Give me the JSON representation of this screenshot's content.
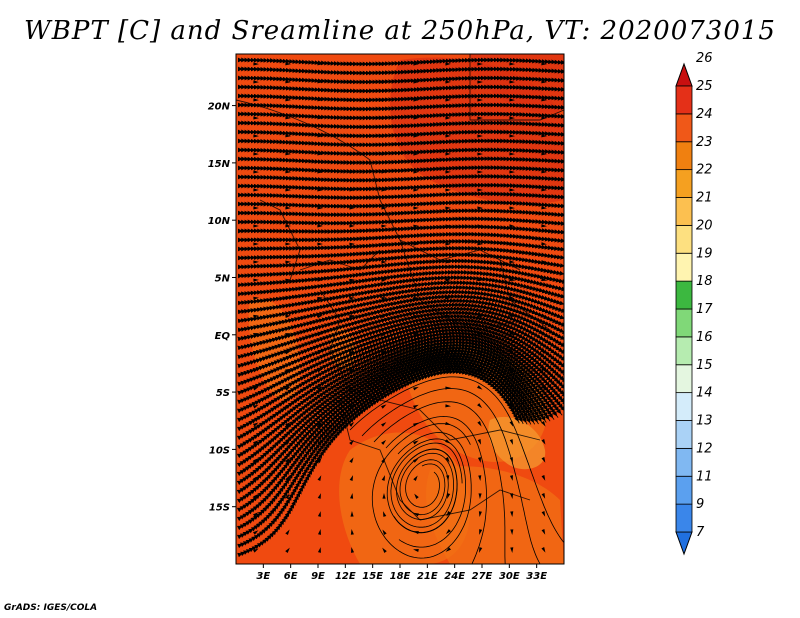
{
  "title": "WBPT [C] and Sreamline at 250hPa, VT: 2020073015",
  "credit": "GrADS: IGES/COLA",
  "map": {
    "lon_range": [
      0,
      36
    ],
    "lat_range": [
      -20,
      24.5
    ],
    "x_ticks": [
      "3E",
      "6E",
      "9E",
      "12E",
      "15E",
      "18E",
      "21E",
      "24E",
      "27E",
      "30E",
      "33E"
    ],
    "x_tick_values": [
      3,
      6,
      9,
      12,
      15,
      18,
      21,
      24,
      27,
      30,
      33
    ],
    "y_ticks": [
      "20N",
      "15N",
      "10N",
      "5N",
      "EQ",
      "5S",
      "10S",
      "15S"
    ],
    "y_tick_values": [
      20,
      15,
      10,
      5,
      0,
      -5,
      -10,
      -15
    ],
    "field_colors": {
      "dominant": "#f04a10",
      "deep": "#dc3010",
      "warm": "#f27014",
      "pale": "#f49a30"
    }
  },
  "colorbar": {
    "labels": [
      "7",
      "9",
      "11",
      "12",
      "13",
      "14",
      "15",
      "16",
      "17",
      "18",
      "19",
      "20",
      "21",
      "22",
      "23",
      "24",
      "25",
      "26"
    ],
    "colors": [
      "#2070e0",
      "#3a86ea",
      "#5ba0ef",
      "#80b8f2",
      "#aad2f6",
      "#d4ecfa",
      "#e4f6e0",
      "#b6ecb0",
      "#80d878",
      "#3cb840",
      "#fff4b0",
      "#fde080",
      "#fcc050",
      "#f5a020",
      "#f08010",
      "#f05818",
      "#e43018",
      "#c81010"
    ]
  }
}
